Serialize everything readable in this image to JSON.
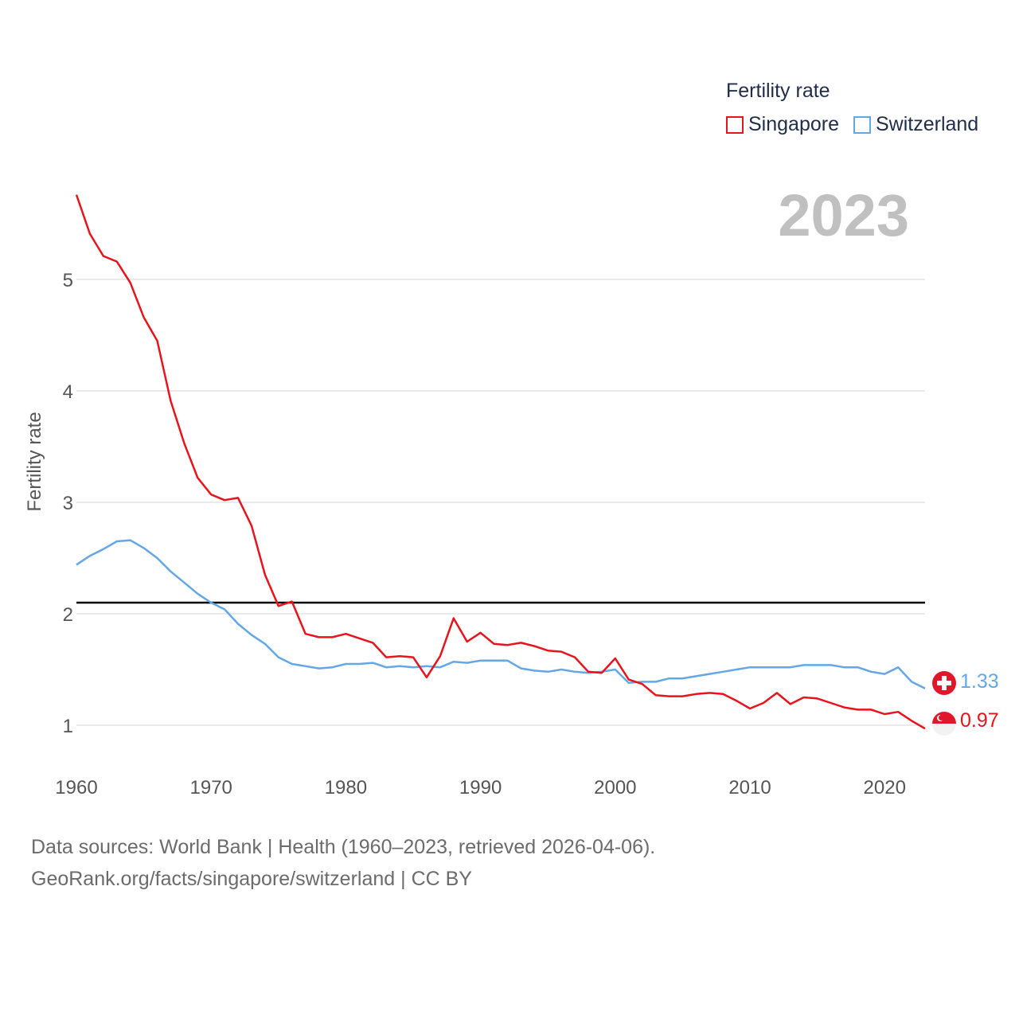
{
  "chart_data": {
    "type": "line",
    "title": "Fertility rate",
    "year_label": "2023",
    "xlabel": "",
    "ylabel": "Fertility rate",
    "xlim": [
      1960,
      2023
    ],
    "ylim": [
      0.65,
      5.85
    ],
    "x_ticks": [
      1960,
      1970,
      1980,
      1990,
      2000,
      2010,
      2020
    ],
    "y_ticks": [
      1,
      2,
      3,
      4,
      5
    ],
    "reference_line": {
      "value": 2.1,
      "color": "#000000"
    },
    "x": [
      1960,
      1961,
      1962,
      1963,
      1964,
      1965,
      1966,
      1967,
      1968,
      1969,
      1970,
      1971,
      1972,
      1973,
      1974,
      1975,
      1976,
      1977,
      1978,
      1979,
      1980,
      1981,
      1982,
      1983,
      1984,
      1985,
      1986,
      1987,
      1988,
      1989,
      1990,
      1991,
      1992,
      1993,
      1994,
      1995,
      1996,
      1997,
      1998,
      1999,
      2000,
      2001,
      2002,
      2003,
      2004,
      2005,
      2006,
      2007,
      2008,
      2009,
      2010,
      2011,
      2012,
      2013,
      2014,
      2015,
      2016,
      2017,
      2018,
      2019,
      2020,
      2021,
      2022,
      2023
    ],
    "series": [
      {
        "name": "Singapore",
        "color": "#e8141c",
        "end_label": "0.97",
        "values": [
          5.76,
          5.41,
          5.21,
          5.16,
          4.97,
          4.66,
          4.45,
          3.91,
          3.53,
          3.22,
          3.07,
          3.02,
          3.04,
          2.79,
          2.35,
          2.07,
          2.11,
          1.82,
          1.79,
          1.79,
          1.82,
          1.78,
          1.74,
          1.61,
          1.62,
          1.61,
          1.43,
          1.62,
          1.96,
          1.75,
          1.83,
          1.73,
          1.72,
          1.74,
          1.71,
          1.67,
          1.66,
          1.61,
          1.48,
          1.47,
          1.6,
          1.41,
          1.37,
          1.27,
          1.26,
          1.26,
          1.28,
          1.29,
          1.28,
          1.22,
          1.15,
          1.2,
          1.29,
          1.19,
          1.25,
          1.24,
          1.2,
          1.16,
          1.14,
          1.14,
          1.1,
          1.12,
          1.04,
          0.97
        ]
      },
      {
        "name": "Switzerland",
        "color": "#64a7e6",
        "end_label": "1.33",
        "values": [
          2.44,
          2.52,
          2.58,
          2.65,
          2.66,
          2.59,
          2.5,
          2.38,
          2.28,
          2.18,
          2.1,
          2.04,
          1.91,
          1.81,
          1.73,
          1.61,
          1.55,
          1.53,
          1.51,
          1.52,
          1.55,
          1.55,
          1.56,
          1.52,
          1.53,
          1.52,
          1.53,
          1.52,
          1.57,
          1.56,
          1.58,
          1.58,
          1.58,
          1.51,
          1.49,
          1.48,
          1.5,
          1.48,
          1.47,
          1.48,
          1.5,
          1.38,
          1.39,
          1.39,
          1.42,
          1.42,
          1.44,
          1.46,
          1.48,
          1.5,
          1.52,
          1.52,
          1.52,
          1.52,
          1.54,
          1.54,
          1.54,
          1.52,
          1.52,
          1.48,
          1.46,
          1.52,
          1.39,
          1.33
        ]
      }
    ],
    "legend": {
      "title": "Fertility rate",
      "position": "top-right"
    },
    "grid": true
  },
  "source": {
    "line1": "Data sources: World Bank | Health (1960–2023, retrieved 2026-04-06).",
    "line2": "GeoRank.org/facts/singapore/switzerland | CC BY"
  },
  "flags": {
    "singapore": "singapore-flag-icon",
    "switzerland": "switzerland-flag-icon"
  }
}
